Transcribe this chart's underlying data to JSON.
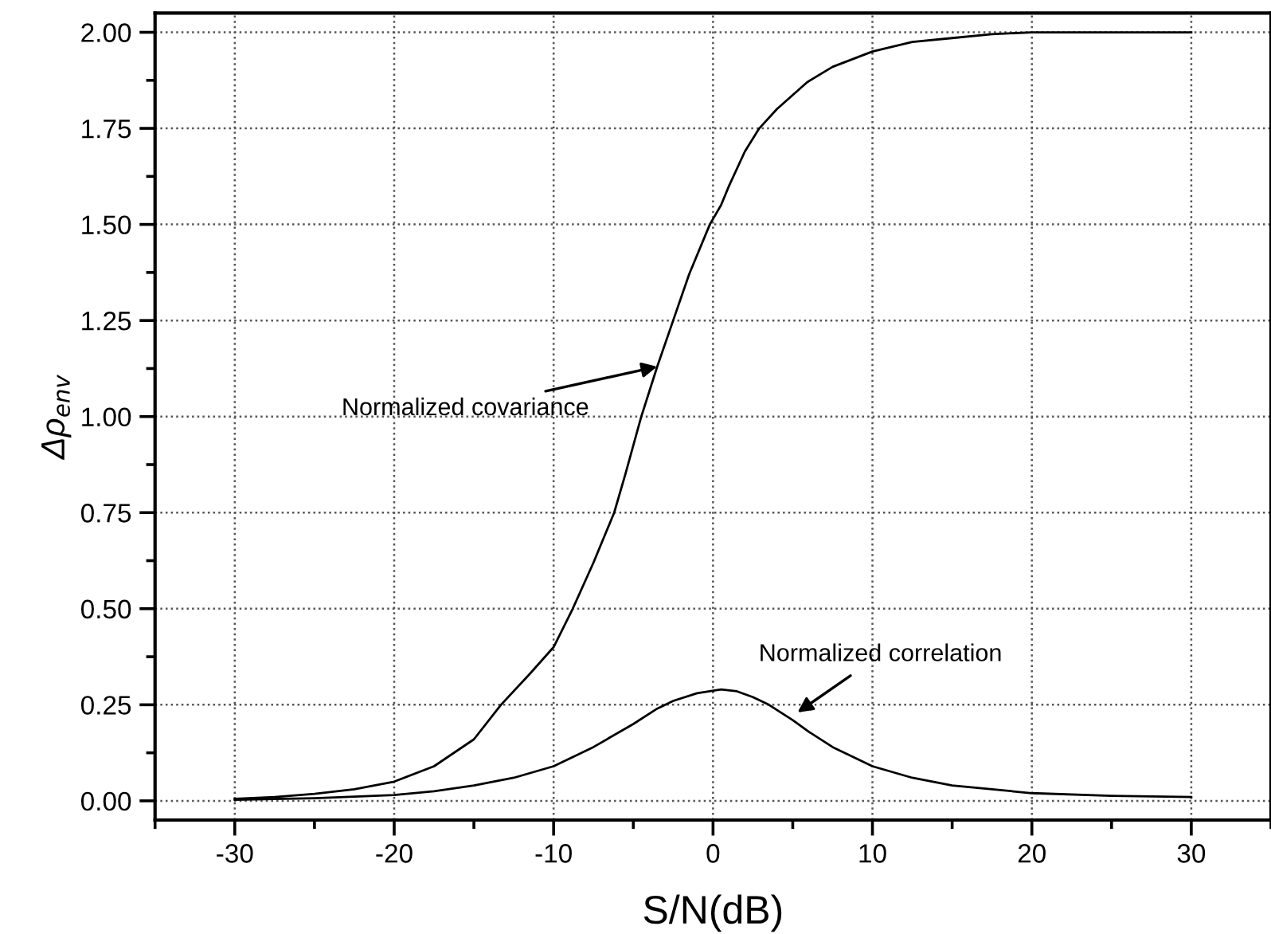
{
  "chart_data": {
    "type": "line",
    "xlabel": "S/N(dB)",
    "ylabel": "Δρ$_{env}$",
    "xlim": [
      -35,
      35
    ],
    "xticks": [
      -30,
      -20,
      -10,
      0,
      10,
      20,
      30
    ],
    "ylim": [
      -0.05,
      2.05
    ],
    "yticks": [
      {
        "value": 0,
        "label": "0.00"
      },
      {
        "value": 0.25,
        "label": "0.25"
      },
      {
        "value": 0.5,
        "label": "0.50"
      },
      {
        "value": 0.75,
        "label": "0.75"
      },
      {
        "value": 1,
        "label": "1.00"
      },
      {
        "value": 1.25,
        "label": "1.25"
      },
      {
        "value": 1.5,
        "label": "1.50"
      },
      {
        "value": 1.75,
        "label": "1.75"
      },
      {
        "value": 2,
        "label": "2.00"
      }
    ],
    "grid": true,
    "legend": false,
    "marker": "none",
    "line_style": "solid",
    "series": [
      {
        "color": "#000000",
        "x": [
          -30,
          -27.5,
          -25,
          -22.5,
          -20,
          -17.5,
          -15,
          -13.3,
          -11.5,
          -10,
          -8.8,
          -7.5,
          -6.2,
          -5.5,
          -4.5,
          -3.5,
          -2.5,
          -1.5,
          -0.2,
          0.5,
          1,
          2,
          2.9,
          4,
          5.9,
          7.5,
          10,
          12.5,
          15,
          17.5,
          20,
          25,
          30
        ],
        "values": [
          0.005,
          0.01,
          0.018,
          0.03,
          0.05,
          0.09,
          0.16,
          0.25,
          0.33,
          0.4,
          0.5,
          0.62,
          0.75,
          0.85,
          1.0,
          1.13,
          1.25,
          1.37,
          1.5,
          1.55,
          1.6,
          1.69,
          1.75,
          1.8,
          1.87,
          1.91,
          1.95,
          1.975,
          1.985,
          1.995,
          2.0,
          2.0,
          2.0
        ]
      },
      {
        "color": "#000000",
        "x": [
          -30,
          -25,
          -20,
          -17.5,
          -15,
          -12.5,
          -10,
          -7.5,
          -5,
          -3.5,
          -2.5,
          -1,
          0.5,
          1.5,
          2.5,
          3.5,
          5,
          6,
          7.5,
          10,
          12.5,
          15,
          17.5,
          20,
          25,
          30
        ],
        "values": [
          0.003,
          0.007,
          0.015,
          0.025,
          0.04,
          0.06,
          0.09,
          0.14,
          0.2,
          0.24,
          0.26,
          0.28,
          0.29,
          0.285,
          0.27,
          0.25,
          0.21,
          0.18,
          0.14,
          0.09,
          0.06,
          0.04,
          0.03,
          0.02,
          0.013,
          0.01
        ]
      }
    ],
    "annotations": [
      {
        "text": "Normalized covariance",
        "x": -3.5,
        "y": 1.13
      },
      {
        "text": "Normalized correlation",
        "x": 5.3,
        "y": 0.23
      }
    ]
  }
}
